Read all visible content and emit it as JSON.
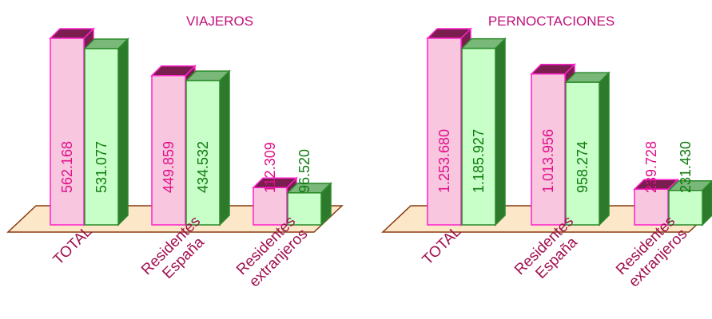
{
  "colors": {
    "series1_front": "#f8c6de",
    "series1_top": "#7a1d4f",
    "series1_side": "#7a1d4f",
    "series1_edge": "#ff22cc",
    "series1_label": "#e0108a",
    "series2_front": "#c8ffc8",
    "series2_top": "#7ab87a",
    "series2_side": "#2d7a2d",
    "series2_edge": "#2a8a2a",
    "series2_label": "#0f7a0f",
    "floor_fill": "#fce8c8",
    "floor_edge": "#8a3a10",
    "title": "#c0107a",
    "category": "#a0104f"
  },
  "chart_data": [
    {
      "type": "bar",
      "title": "VIAJEROS",
      "categories": [
        "TOTAL",
        "Residentes España",
        "Residentes extranjeros"
      ],
      "category_lines": [
        [
          "TOTAL"
        ],
        [
          "Residentes",
          "España"
        ],
        [
          "Residentes",
          "extranjeros"
        ]
      ],
      "series": [
        {
          "values": [
            562168,
            449859,
            112309
          ],
          "labels": [
            "562.168",
            "449.859",
            "112.309"
          ]
        },
        {
          "values": [
            531077,
            434532,
            96520
          ],
          "labels": [
            "531.077",
            "434.532",
            "96.520"
          ]
        }
      ],
      "ylim": [
        0,
        562168
      ]
    },
    {
      "type": "bar",
      "title": "PERNOCTACIONES",
      "categories": [
        "TOTAL",
        "Residentes España",
        "Residentes extranjeros"
      ],
      "category_lines": [
        [
          "TOTAL"
        ],
        [
          "Residentes",
          "España"
        ],
        [
          "Residentes",
          "extranjeros"
        ]
      ],
      "series": [
        {
          "values": [
            1253680,
            1013956,
            239728
          ],
          "labels": [
            "1.253.680",
            "1.013.956",
            "239.728"
          ]
        },
        {
          "values": [
            1185927,
            958274,
            231430
          ],
          "labels": [
            "1.185.927",
            "958.274",
            "231.430"
          ]
        }
      ],
      "ylim": [
        0,
        1253680
      ]
    }
  ]
}
